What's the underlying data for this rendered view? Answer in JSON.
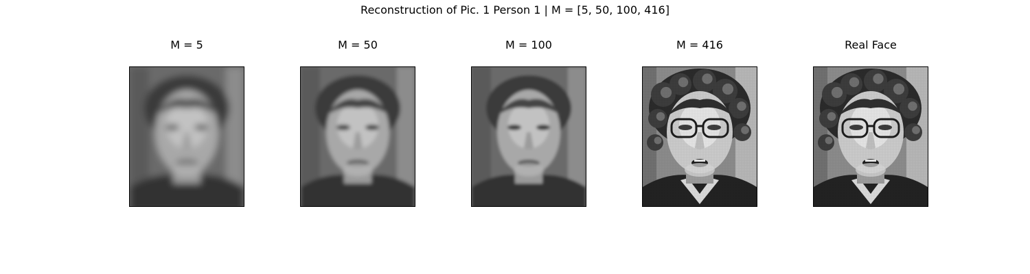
{
  "figure": {
    "title": "Reconstruction of Pic. 1 Person 1 | M = [5, 50, 100, 416]",
    "panels": [
      {
        "title": "M = 5",
        "image": "grayscale face reconstruction, very blurry",
        "blur": 5
      },
      {
        "title": "M = 50",
        "image": "grayscale face reconstruction, blurry",
        "blur": 3
      },
      {
        "title": "M = 100",
        "image": "grayscale face reconstruction, slightly blurry",
        "blur": 2.2
      },
      {
        "title": "M = 416",
        "image": "grayscale face reconstruction, sharp with glasses",
        "blur": 0
      },
      {
        "title": "Real Face",
        "image": "grayscale original face photo with glasses",
        "blur": 0
      }
    ]
  }
}
